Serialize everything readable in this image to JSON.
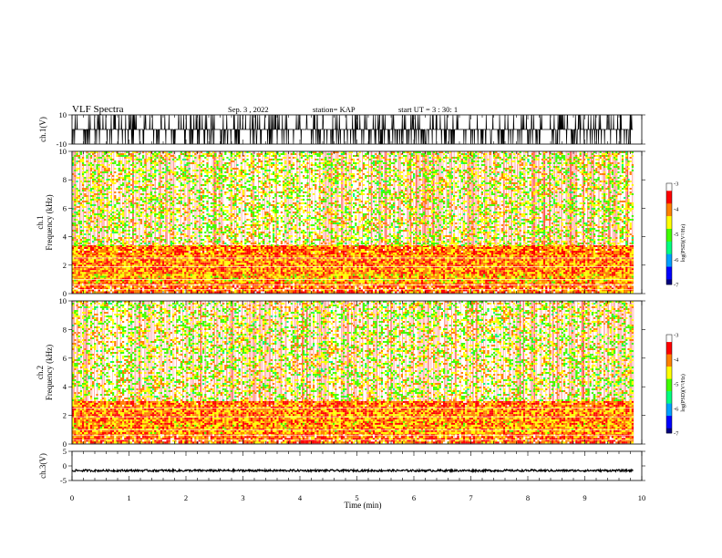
{
  "header": {
    "title": "VLF Spectra",
    "date": "Sep. 3 , 2022",
    "station": "station= KAP",
    "start": "start UT =  3 : 30: 1"
  },
  "chart_data": [
    {
      "type": "line",
      "name": "ch1-waveform",
      "ylabel": "ch.1(V)",
      "ylim": [
        -10,
        10
      ],
      "yticks": [
        "10",
        "-10"
      ],
      "xlim": [
        0,
        10
      ],
      "note_level": "waveform saturating near +10 / -10 V"
    },
    {
      "type": "heatmap",
      "name": "ch1-spectrogram",
      "ylabel": "ch.1\nFrequency (kHz)",
      "ylim": [
        0,
        10
      ],
      "yticks": [
        "0",
        "2",
        "4",
        "6",
        "8",
        "10"
      ],
      "xlim": [
        0,
        9.85
      ],
      "bands": [
        {
          "from_khz": 0.1,
          "to_khz": 0.8,
          "level": -3.8
        },
        {
          "from_khz": 0.8,
          "to_khz": 1.5,
          "level": -4.2
        },
        {
          "from_khz": 1.5,
          "to_khz": 2.8,
          "level": -4.0
        },
        {
          "from_khz": 2.8,
          "to_khz": 3.4,
          "level": -3.9
        },
        {
          "from_khz": 3.4,
          "to_khz": 10.0,
          "level": -4.6
        }
      ],
      "colorbar": {
        "label": "log(PSD)(V²/Hz)",
        "ticks": [
          "-3",
          "-4",
          "-5",
          "-6",
          "-7"
        ],
        "range": [
          -7,
          -3
        ]
      }
    },
    {
      "type": "heatmap",
      "name": "ch2-spectrogram",
      "ylabel": "ch.2\nFrequency (kHz)",
      "ylim": [
        0,
        10
      ],
      "yticks": [
        "0",
        "2",
        "4",
        "6",
        "8",
        "10"
      ],
      "xlim": [
        0,
        9.85
      ],
      "bands": [
        {
          "from_khz": 0.1,
          "to_khz": 0.8,
          "level": -3.8
        },
        {
          "from_khz": 0.8,
          "to_khz": 1.6,
          "level": -4.1
        },
        {
          "from_khz": 1.6,
          "to_khz": 2.6,
          "level": -4.0
        },
        {
          "from_khz": 2.6,
          "to_khz": 3.0,
          "level": -3.9
        },
        {
          "from_khz": 3.0,
          "to_khz": 10.0,
          "level": -4.6
        }
      ],
      "colorbar": {
        "label": "log(PSD)(V²/Hz)",
        "ticks": [
          "-3",
          "-4",
          "-5",
          "-6",
          "-7"
        ],
        "range": [
          -7,
          -3
        ]
      }
    },
    {
      "type": "line",
      "name": "ch3-waveform",
      "ylabel": "ch.3(V)",
      "ylim": [
        -5,
        5
      ],
      "yticks": [
        "5",
        "0",
        "-5"
      ],
      "xlim": [
        0,
        10
      ],
      "note_level": "waveform near -1.6 V with small oscillation"
    }
  ],
  "xaxis": {
    "label": "Time (min)",
    "ticks": [
      "0",
      "1",
      "2",
      "3",
      "4",
      "5",
      "6",
      "7",
      "8",
      "9",
      "10"
    ]
  },
  "colors": {
    "colormap": [
      "#000080",
      "#0000ff",
      "#00a0ff",
      "#00ff80",
      "#40ff00",
      "#ffff00",
      "#ff8000",
      "#ff0000",
      "#ffffff"
    ]
  }
}
